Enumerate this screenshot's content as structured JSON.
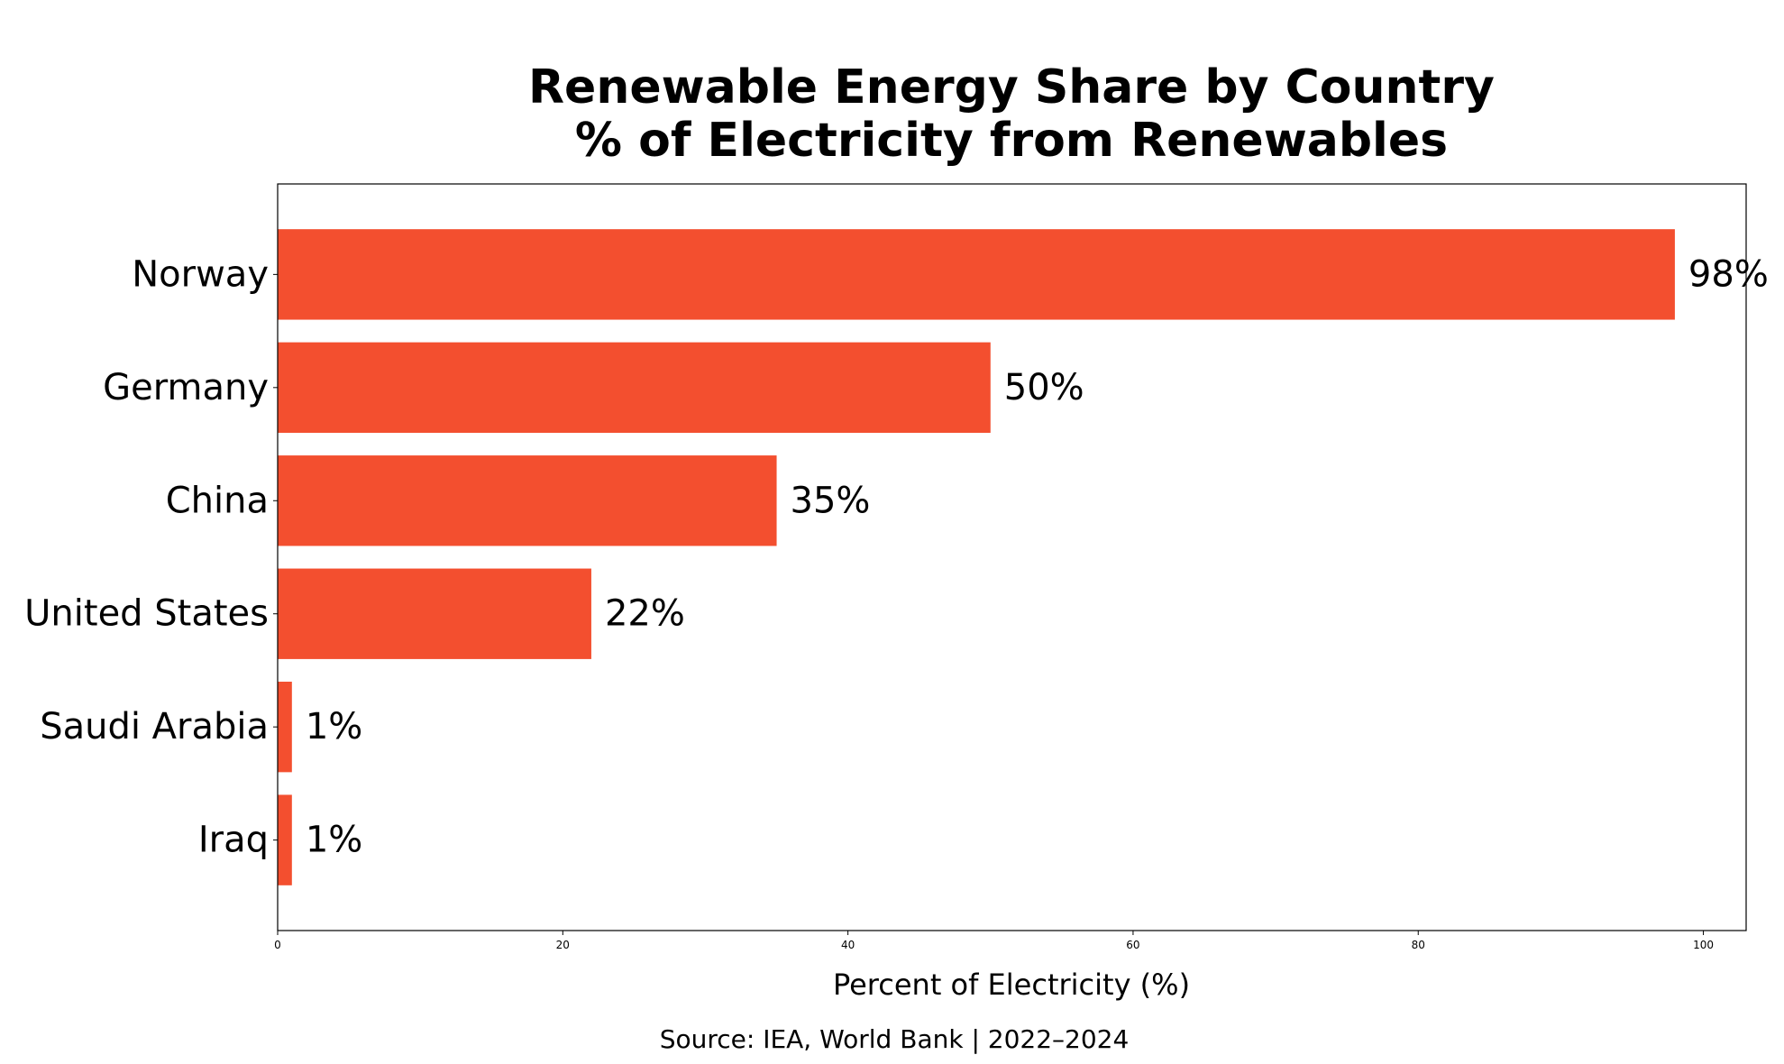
{
  "chart_data": {
    "type": "bar",
    "orientation": "horizontal",
    "title": "Renewable Energy Share by Country",
    "subtitle": "% of Electricity from Renewables",
    "categories": [
      "Norway",
      "Germany",
      "China",
      "United States",
      "Saudi Arabia",
      "Iraq"
    ],
    "values": [
      98,
      50,
      35,
      22,
      1,
      1
    ],
    "value_labels": [
      "98%",
      "50%",
      "35%",
      "22%",
      "1%",
      "1%"
    ],
    "xlabel": "Percent of Electricity (%)",
    "ylabel": "",
    "xlim": [
      0,
      103
    ],
    "xticks": [
      0,
      20,
      40,
      60,
      80,
      100
    ],
    "xtick_labels": [
      "0",
      "20",
      "40",
      "60",
      "80",
      "100"
    ],
    "grid": false,
    "bar_color": "#F34F2F",
    "source": "Source: IEA, World Bank | 2022–2024"
  }
}
